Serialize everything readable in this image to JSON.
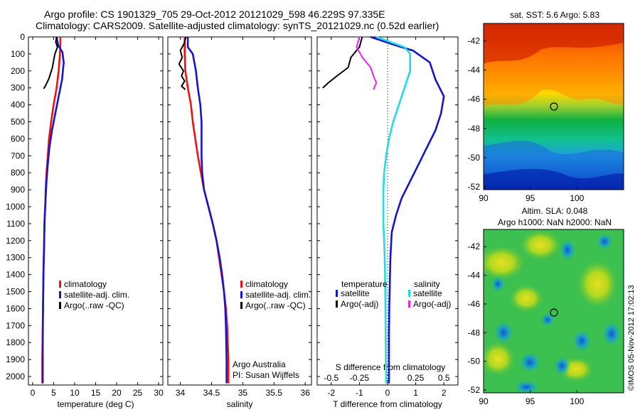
{
  "figure": {
    "title_line1": "Argo profile: CS 1901329_705 29-Oct-2012 20121029_598 46.229S 97.335E",
    "title_line2": "Climatology: CARS2009. Satellite-adjusted climatology: synTS_20121029.nc (0.52d earlier)",
    "stamp": "©IMOS 05-Nov-2012 17:02:13",
    "credit_line1": "Argo Australia",
    "credit_line2": "PI: Susan Wijffels"
  },
  "colors": {
    "climatology": "#ee1111",
    "satellite": "#1515cc",
    "argo": "#000000",
    "salinity_satellite": "#22dddd",
    "salinity_argo": "#ee22ee"
  },
  "chart_data": [
    {
      "type": "line",
      "panel": "temperature",
      "xlabel": "temperature (deg C)",
      "ylabel": "",
      "xlim": [
        -1,
        31
      ],
      "ylim": [
        2050,
        0
      ],
      "xticks": [
        0,
        5,
        10,
        15,
        20,
        25,
        30
      ],
      "yticks": [
        0,
        100,
        200,
        300,
        400,
        500,
        600,
        700,
        800,
        900,
        1000,
        1100,
        1200,
        1300,
        1400,
        1500,
        1600,
        1700,
        1800,
        1900,
        2000
      ],
      "legend": [
        "climatology",
        "satellite-adj. clim.",
        "Argo(..raw -QC)"
      ],
      "legend_position": "lower-center",
      "series": [
        {
          "name": "climatology",
          "color": "#ee1111",
          "x": [
            6.6,
            6.6,
            6.5,
            6.2,
            5.7,
            5.0,
            4.4,
            3.9,
            3.6,
            3.3,
            3.1,
            3.0,
            2.8,
            2.75,
            2.65,
            2.55,
            2.5,
            2.45,
            2.4,
            2.35,
            2.3,
            2.3
          ],
          "y": [
            0,
            50,
            100,
            200,
            300,
            400,
            500,
            600,
            700,
            800,
            900,
            1000,
            1100,
            1200,
            1300,
            1400,
            1500,
            1600,
            1700,
            1800,
            1900,
            2040
          ]
        },
        {
          "name": "satellite-adj. clim.",
          "color": "#1515cc",
          "x": [
            5.7,
            6.1,
            7.1,
            7.4,
            7.0,
            6.2,
            5.4,
            4.6,
            4.0,
            3.6,
            3.3,
            3.1,
            2.9,
            2.8,
            2.7,
            2.6,
            2.55,
            2.5,
            2.45,
            2.4,
            2.4,
            2.4
          ],
          "y": [
            0,
            50,
            90,
            150,
            250,
            350,
            450,
            550,
            650,
            750,
            850,
            950,
            1050,
            1150,
            1250,
            1350,
            1450,
            1550,
            1650,
            1800,
            1900,
            2040
          ]
        },
        {
          "name": "Argo(..raw -QC)",
          "color": "#000000",
          "x": [
            5.7,
            5.5,
            5.9,
            5.3,
            5.0,
            4.7,
            4.2,
            3.8,
            3.4,
            3.0,
            2.6
          ],
          "y": [
            0,
            30,
            60,
            100,
            140,
            180,
            220,
            250,
            270,
            290,
            305
          ]
        }
      ]
    },
    {
      "type": "line",
      "panel": "salinity",
      "xlabel": "salinity",
      "ylabel": "",
      "xlim": [
        33.8,
        36.1
      ],
      "ylim": [
        2050,
        0
      ],
      "xticks": [
        34,
        34.5,
        35,
        35.5,
        36
      ],
      "legend": [
        "climatology",
        "satellite-adj. clim.",
        "Argo(..raw -QC)"
      ],
      "legend_position": "lower-right",
      "series": [
        {
          "name": "climatology",
          "color": "#ee1111",
          "x": [
            34.07,
            34.07,
            34.08,
            34.12,
            34.17,
            34.2,
            34.24,
            34.28,
            34.33,
            34.38,
            34.45,
            34.52,
            34.58,
            34.62,
            34.66,
            34.7,
            34.73,
            34.75,
            34.76,
            34.77,
            34.77
          ],
          "y": [
            0,
            100,
            200,
            300,
            400,
            500,
            600,
            700,
            800,
            900,
            1000,
            1100,
            1200,
            1300,
            1400,
            1500,
            1600,
            1700,
            1800,
            1900,
            2040
          ]
        },
        {
          "name": "satellite-adj. clim.",
          "color": "#1515cc",
          "x": [
            34.12,
            34.12,
            34.2,
            34.25,
            34.28,
            34.32,
            34.34,
            34.34,
            34.34,
            34.35,
            34.38,
            34.45,
            34.52,
            34.58,
            34.63,
            34.67,
            34.7,
            34.72,
            34.73,
            34.74,
            34.74
          ],
          "y": [
            0,
            60,
            100,
            200,
            300,
            400,
            500,
            600,
            700,
            800,
            900,
            1000,
            1100,
            1200,
            1300,
            1400,
            1500,
            1600,
            1700,
            1900,
            2040
          ]
        },
        {
          "name": "Argo(..raw -QC)",
          "color": "#000000",
          "x": [
            34.09,
            34.06,
            34.0,
            34.03,
            33.98,
            34.05,
            34.02,
            34.07,
            34.02,
            34.08
          ],
          "y": [
            0,
            40,
            80,
            120,
            160,
            200,
            230,
            260,
            290,
            310
          ]
        }
      ]
    },
    {
      "type": "line",
      "panel": "difference",
      "xlabel": "T difference from climatology",
      "xlabel_top": "S difference from climatology",
      "ylabel": "",
      "xlim": [
        -2.5,
        2.5
      ],
      "ylim": [
        2050,
        0
      ],
      "xticks": [
        -2,
        -1,
        0,
        1,
        2
      ],
      "xticks_top": [
        -0.5,
        -0.25,
        0,
        0.25,
        0.5
      ],
      "xticklabels_top": [
        "-0.5",
        "-0.25",
        "0",
        "0.25",
        "0.5"
      ],
      "legend": [
        "temperature",
        "satellite",
        "Argo(-adj)",
        "salinity",
        "satellite",
        "Argo(-adj)"
      ],
      "legend_position": "lower-center",
      "series": [
        {
          "name": "temperature satellite",
          "color": "#1515cc",
          "x": [
            -0.6,
            0.3,
            0.9,
            1.5,
            1.7,
            2.0,
            1.9,
            1.7,
            1.4,
            1.1,
            0.8,
            0.5,
            0.3,
            0.15,
            0.1,
            0.08,
            0.06,
            0.05,
            0.05,
            0.05,
            0.05
          ],
          "y": [
            0,
            50,
            80,
            150,
            250,
            350,
            450,
            550,
            650,
            750,
            850,
            950,
            1050,
            1150,
            1300,
            1450,
            1600,
            1750,
            1900,
            2000,
            2040
          ]
        },
        {
          "name": "temperature Argo(-adj)",
          "color": "#000000",
          "x": [
            -0.9,
            -1.0,
            -1.3,
            -1.4,
            -1.8,
            -2.1,
            -2.3
          ],
          "y": [
            0,
            60,
            120,
            180,
            230,
            270,
            300
          ]
        },
        {
          "name": "salinity satellite",
          "color": "#22dddd",
          "x": [
            -0.4,
            0.6,
            0.8,
            0.8,
            0.6,
            0.4,
            0.2,
            0.05,
            -0.05,
            -0.12,
            -0.15,
            -0.15,
            -0.15,
            -0.12,
            -0.1,
            -0.08,
            -0.07,
            -0.06,
            -0.05,
            -0.05
          ],
          "y": [
            0,
            60,
            100,
            200,
            300,
            400,
            500,
            600,
            700,
            800,
            900,
            1000,
            1100,
            1200,
            1300,
            1500,
            1700,
            1900,
            2000,
            2040
          ]
        },
        {
          "name": "salinity Argo(-adj)",
          "color": "#ee22ee",
          "x": [
            -1.0,
            -1.1,
            -0.9,
            -0.6,
            -0.5,
            -0.4,
            -0.5
          ],
          "y": [
            0,
            60,
            120,
            180,
            230,
            270,
            310
          ]
        }
      ]
    },
    {
      "type": "heatmap",
      "panel": "sst_map",
      "title": "sat. SST: 5.6 Argo: 5.83",
      "xlim": [
        90,
        105
      ],
      "ylim": [
        -52.2,
        -40.8
      ],
      "xticks": [
        90,
        95,
        100
      ],
      "yticks": [
        -42,
        -44,
        -46,
        -48,
        -50,
        -52
      ],
      "marker": {
        "lon": 97.335,
        "lat": -46.229
      },
      "colormap": "jet",
      "description": "sea surface temperature, warm (red) north, cold (blue) south"
    },
    {
      "type": "heatmap",
      "panel": "sla_map",
      "title_line1": "Altim. SLA: 0.048",
      "title_line2": "Argo h1000: NaN h2000: NaN",
      "xlim": [
        90,
        105
      ],
      "ylim": [
        -52.2,
        -40.8
      ],
      "xticks": [
        90,
        95,
        100
      ],
      "yticks": [
        -42,
        -44,
        -46,
        -48,
        -50,
        -52
      ],
      "marker": {
        "lon": 97.335,
        "lat": -46.229
      },
      "colormap": "jet",
      "description": "sea level anomaly, mostly green/yellow with blue eddies"
    }
  ]
}
